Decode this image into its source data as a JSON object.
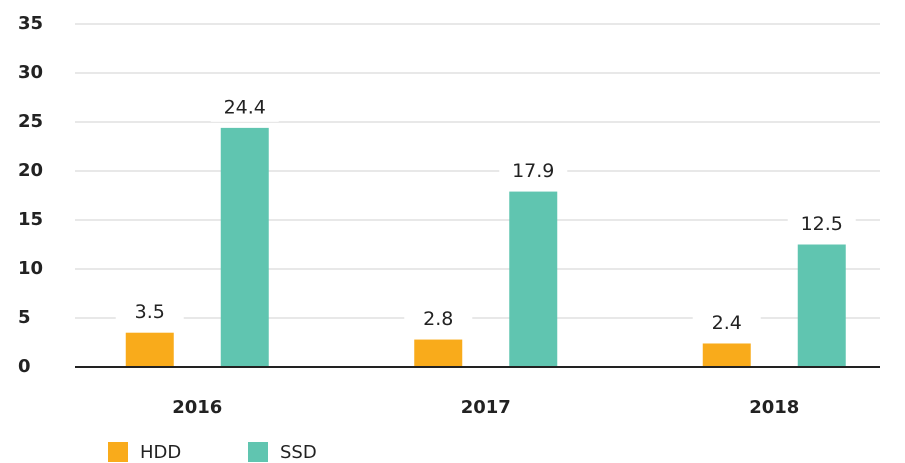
{
  "chart_data": {
    "type": "bar",
    "categories": [
      "2016",
      "2017",
      "2018"
    ],
    "series": [
      {
        "name": "HDD",
        "color": "#f9ab1b",
        "values": [
          3.5,
          2.8,
          2.4
        ]
      },
      {
        "name": "SSD",
        "color": "#60c5b0",
        "values": [
          24.4,
          17.9,
          12.5
        ]
      }
    ],
    "ylim": [
      0,
      35
    ],
    "yticks": [
      0,
      5,
      10,
      15,
      20,
      25,
      30,
      35
    ],
    "grid": true,
    "legend": "bottom-left"
  }
}
